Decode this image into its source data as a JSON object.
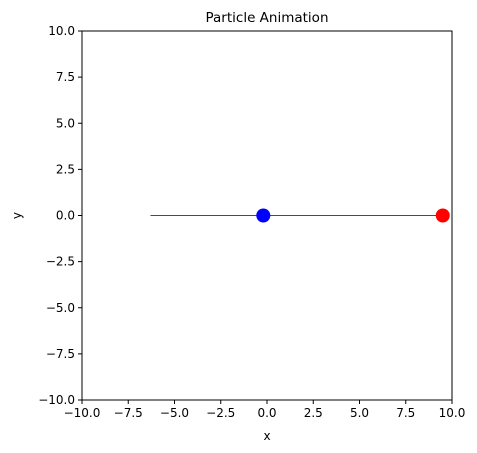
{
  "chart_data": {
    "type": "scatter",
    "title": "Particle Animation",
    "xlabel": "x",
    "ylabel": "y",
    "xlim": [
      -10,
      10
    ],
    "ylim": [
      -10,
      10
    ],
    "xticks": [
      -10,
      -7.5,
      -5,
      -2.5,
      0,
      2.5,
      5,
      7.5,
      10
    ],
    "yticks": [
      -10,
      -7.5,
      -5,
      -2.5,
      0,
      2.5,
      5,
      7.5,
      10
    ],
    "xtick_labels": [
      "−10.0",
      "−7.5",
      "−5.0",
      "−2.5",
      "0.0",
      "2.5",
      "5.0",
      "7.5",
      "10.0"
    ],
    "ytick_labels": [
      "−10.0",
      "−7.5",
      "−5.0",
      "−2.5",
      "0.0",
      "2.5",
      "5.0",
      "7.5",
      "10.0"
    ],
    "grid": false,
    "trail": {
      "color": "#ff0000",
      "x": [
        -6.3,
        9.5
      ],
      "y": [
        0.0,
        0.0
      ]
    },
    "series": [
      {
        "color": "#0000ff",
        "x": [
          -0.2
        ],
        "y": [
          0.0
        ]
      },
      {
        "color": "#ff0000",
        "x": [
          9.5
        ],
        "y": [
          0.0
        ]
      }
    ]
  }
}
